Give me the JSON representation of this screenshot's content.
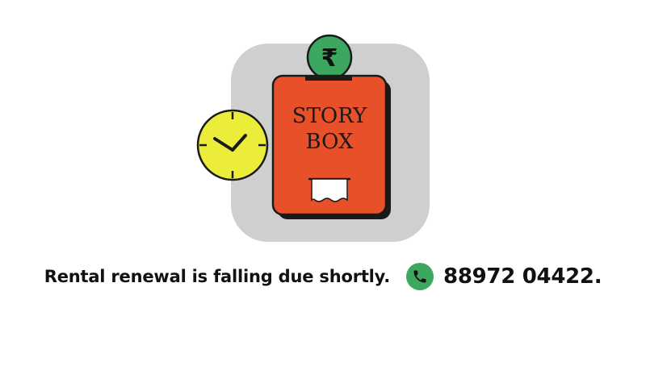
{
  "illustration": {
    "box_label_line1": "STORY",
    "box_label_line2": "BOX",
    "coin_symbol": "₹",
    "icons": [
      "clock-icon",
      "rupee-coin-icon",
      "story-box-icon",
      "receipt-slip-icon"
    ],
    "colors": {
      "backdrop": "#cfcfcf",
      "box": "#e8502a",
      "coin": "#3ca75e",
      "clock": "#ecec3a",
      "outline": "#1a1a1a"
    }
  },
  "message": {
    "text": "Rental renewal is falling due shortly.",
    "phone_icon": "phone-icon",
    "phone_icon_color": "#3ca75e",
    "phone_number": "88972 04422."
  }
}
